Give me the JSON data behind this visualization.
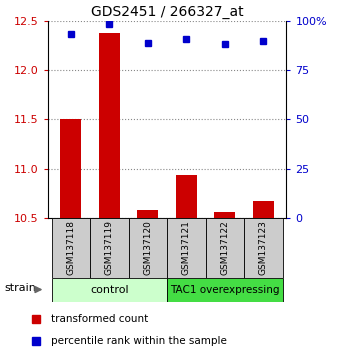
{
  "title": "GDS2451 / 266327_at",
  "samples": [
    "GSM137118",
    "GSM137119",
    "GSM137120",
    "GSM137121",
    "GSM137122",
    "GSM137123"
  ],
  "red_values": [
    11.5,
    12.38,
    10.58,
    10.93,
    10.56,
    10.67
  ],
  "blue_values": [
    12.37,
    12.47,
    12.28,
    12.32,
    12.27,
    12.3
  ],
  "ylim": [
    10.5,
    12.5
  ],
  "y2lim": [
    0,
    100
  ],
  "yticks": [
    10.5,
    11.0,
    11.5,
    12.0,
    12.5
  ],
  "y2ticks": [
    0,
    25,
    50,
    75,
    100
  ],
  "control_label": "control",
  "tac1_label": "TAC1 overexpressing",
  "strain_label": "strain",
  "legend_red": "transformed count",
  "legend_blue": "percentile rank within the sample",
  "bar_color": "#cc0000",
  "dot_color": "#0000cc",
  "control_bg": "#ccffcc",
  "tac1_bg": "#44dd44",
  "sample_bg": "#cccccc",
  "grid_color": "#888888",
  "y_label_color": "#cc0000",
  "y2_label_color": "#0000cc"
}
